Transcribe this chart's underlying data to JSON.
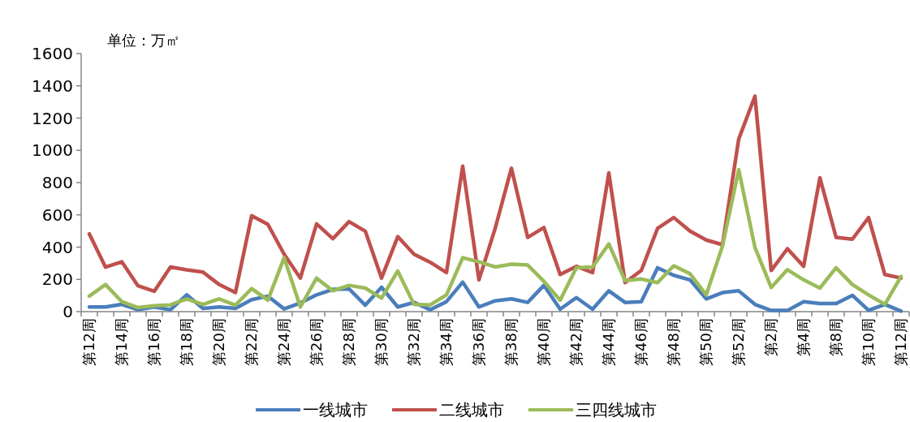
{
  "chart_data": {
    "type": "line",
    "ylabel": "单位：万㎡",
    "categories": [
      "第12周",
      null,
      "第14周",
      null,
      "第16周",
      null,
      "第18周",
      null,
      "第20周",
      null,
      "第22周",
      null,
      "第24周",
      null,
      "第26周",
      null,
      "第28周",
      null,
      "第30周",
      null,
      "第32周",
      null,
      "第34周",
      null,
      "第36周",
      null,
      "第38周",
      null,
      "第40周",
      null,
      "第42周",
      null,
      "第44周",
      null,
      "第46周",
      null,
      "第48周",
      null,
      "第50周",
      null,
      "第52周",
      null,
      "第2周",
      null,
      "第4周",
      null,
      "第8周",
      null,
      "第10周",
      null,
      "第12周"
    ],
    "series": [
      {
        "name": "一线城市",
        "color": "#4a7ebb",
        "values": [
          29,
          29,
          45,
          12,
          29,
          12,
          104,
          20,
          29,
          20,
          74,
          96,
          17,
          54,
          104,
          138,
          141,
          40,
          151,
          29,
          57,
          12,
          62,
          183,
          29,
          67,
          79,
          57,
          163,
          15,
          87,
          15,
          129,
          57,
          62,
          272,
          225,
          197,
          79,
          118,
          129,
          45,
          7,
          7,
          62,
          50,
          50,
          101,
          8,
          45,
          3
        ]
      },
      {
        "name": "二线城市",
        "color": "#c0504d",
        "values": [
          482,
          276,
          309,
          160,
          126,
          277,
          259,
          245,
          168,
          118,
          595,
          541,
          356,
          208,
          544,
          452,
          558,
          499,
          208,
          465,
          356,
          306,
          242,
          902,
          197,
          516,
          889,
          460,
          521,
          230,
          281,
          242,
          860,
          180,
          255,
          516,
          583,
          499,
          444,
          415,
          1070,
          1336,
          255,
          390,
          281,
          830,
          460,
          449,
          583,
          230,
          208
        ]
      },
      {
        "name": "三四线城市",
        "color": "#9bbb59",
        "values": [
          96,
          168,
          62,
          25,
          37,
          42,
          79,
          45,
          79,
          40,
          143,
          71,
          334,
          29,
          208,
          129,
          163,
          146,
          84,
          252,
          45,
          42,
          104,
          334,
          309,
          277,
          294,
          289,
          188,
          71,
          272,
          277,
          420,
          192,
          202,
          180,
          284,
          235,
          104,
          407,
          880,
          398,
          150,
          260,
          197,
          146,
          272,
          168,
          104,
          45,
          218
        ]
      }
    ],
    "ylim": [
      0,
      1600
    ],
    "yticks": [
      0,
      200,
      400,
      600,
      800,
      1000,
      1200,
      1400,
      1600
    ],
    "legend": "bottom"
  }
}
